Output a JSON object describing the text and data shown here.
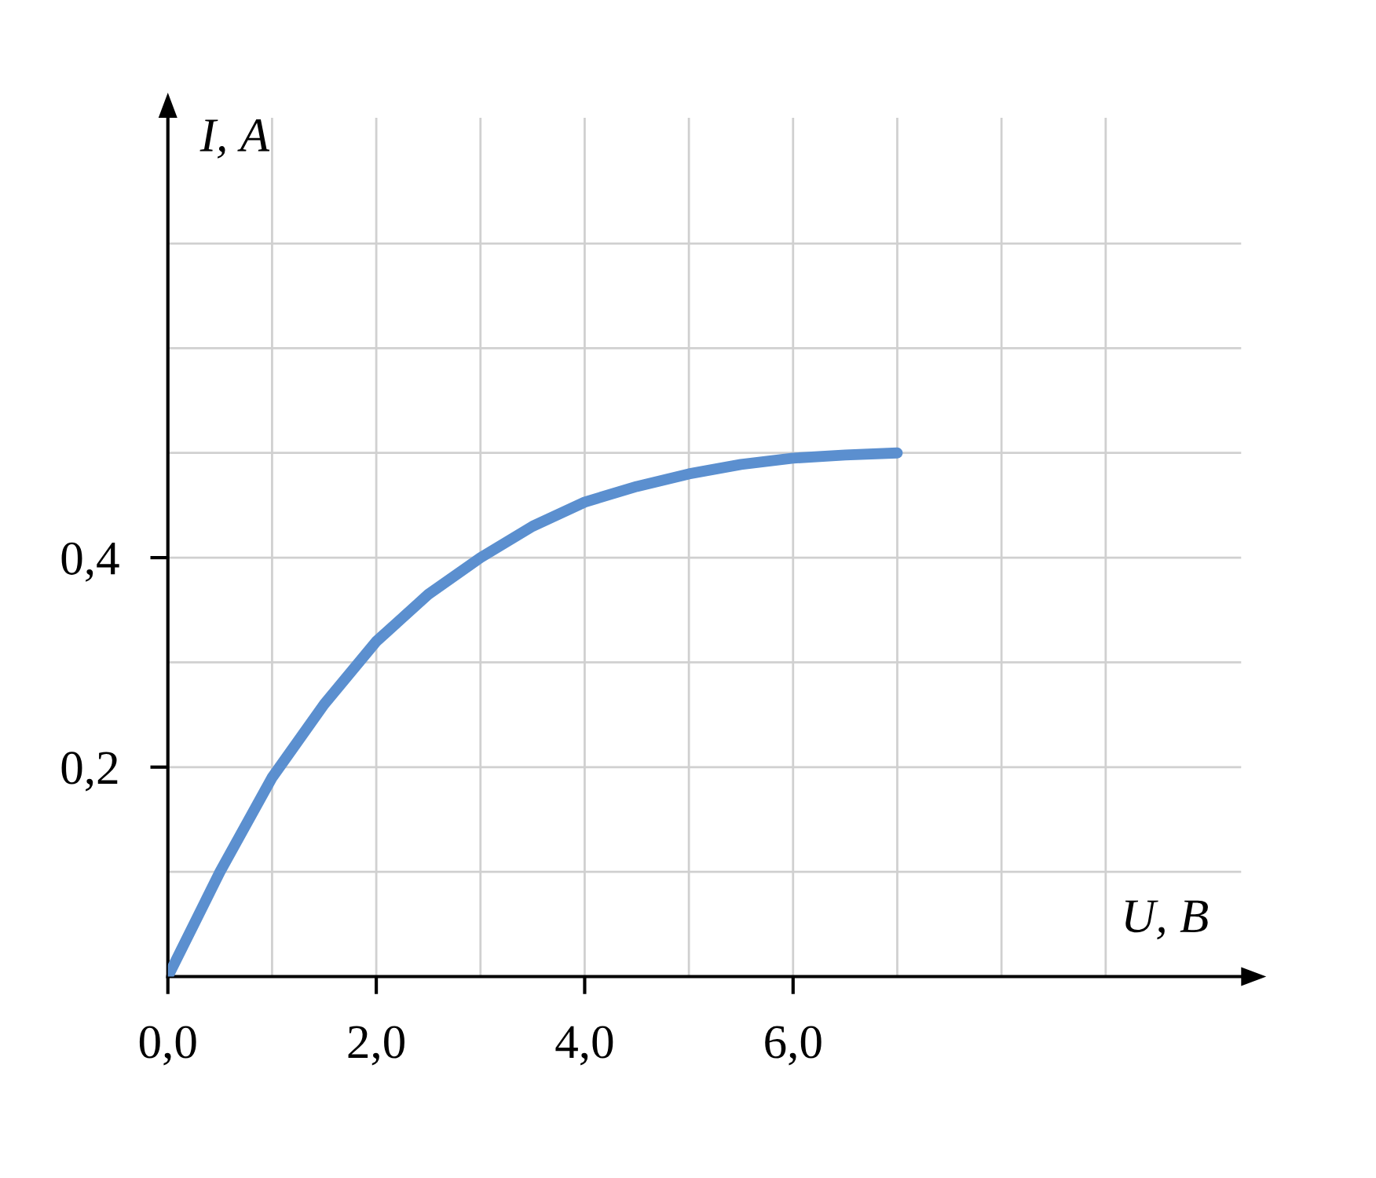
{
  "chart_data": {
    "type": "line",
    "xlabel": "U, В",
    "ylabel": "I, А",
    "x": [
      0,
      0.5,
      1,
      1.5,
      2,
      2.5,
      3,
      3.5,
      4,
      4.5,
      5,
      5.5,
      6,
      6.5,
      7
    ],
    "series": [
      {
        "color": "#5b8fcf",
        "values": [
          0,
          0.1,
          0.19,
          0.26,
          0.32,
          0.365,
          0.4,
          0.43,
          0.453,
          0.468,
          0.48,
          0.489,
          0.495,
          0.498,
          0.5
        ]
      }
    ],
    "xlim": [
      0,
      10.3
    ],
    "ylim": [
      0,
      0.82
    ],
    "xticks": [
      {
        "value": 0,
        "label": "0,0"
      },
      {
        "value": 1,
        "label": null
      },
      {
        "value": 2,
        "label": "2,0"
      },
      {
        "value": 3,
        "label": null
      },
      {
        "value": 4,
        "label": "4,0"
      },
      {
        "value": 5,
        "label": null
      },
      {
        "value": 6,
        "label": "6,0"
      },
      {
        "value": 7,
        "label": null
      },
      {
        "value": 8,
        "label": null
      },
      {
        "value": 9,
        "label": null
      }
    ],
    "yticks": [
      {
        "value": 0.1,
        "label": null
      },
      {
        "value": 0.2,
        "label": "0,2"
      },
      {
        "value": 0.3,
        "label": null
      },
      {
        "value": 0.4,
        "label": "0,4"
      },
      {
        "value": 0.5,
        "label": null
      },
      {
        "value": 0.6,
        "label": null
      },
      {
        "value": 0.7,
        "label": null
      }
    ],
    "grid": true,
    "marker": "none",
    "line_style": "solid",
    "legend": false
  }
}
